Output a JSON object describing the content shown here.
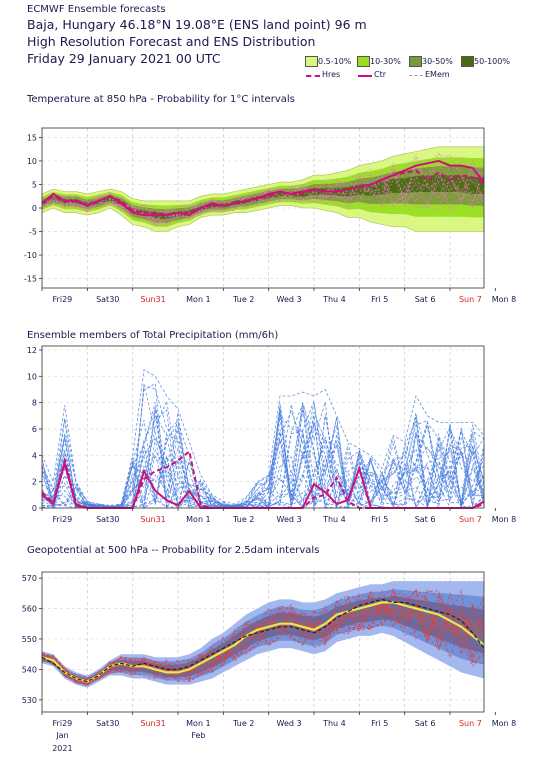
{
  "header": {
    "line1": "ECMWF Ensemble forecasts",
    "line2": "Baja, Hungary 46.18°N 19.08°E (ENS land point) 96 m",
    "line3": "High Resolution Forecast and ENS Distribution",
    "line4": "Friday 29 January 2021 00 UTC"
  },
  "legend": {
    "bins": [
      {
        "label": "0.5-10%",
        "color": "#d9f77e"
      },
      {
        "label": "10-30%",
        "color": "#99dd22"
      },
      {
        "label": "30-50%",
        "color": "#7a9a3a"
      },
      {
        "label": "50-100%",
        "color": "#4a6b10"
      }
    ],
    "lines": [
      {
        "label": "Hres",
        "color": "#cc1177",
        "style": "dashed"
      },
      {
        "label": "Ctr",
        "color": "#cc1177",
        "style": "solid"
      },
      {
        "label": "EMem",
        "color": "#ee77cc",
        "style": "dashed"
      }
    ]
  },
  "x_axis": {
    "days": [
      "Fri29",
      "Sat30",
      "Sun31",
      "Mon 1",
      "Tue 2",
      "Wed 3",
      "Thu 4",
      "Fri 5",
      "Sat 6",
      "Sun 7",
      "Mon 8"
    ],
    "sunday_color": "#dd2222",
    "month_labels": [
      "Jan",
      "Feb"
    ],
    "year_label": "2021"
  },
  "chart_data": [
    {
      "type": "area",
      "title": "Temperature at 850 hPa - Probability for 1°C intervals",
      "ylim": [
        -17,
        17
      ],
      "yticks": [
        -15,
        -10,
        -5,
        0,
        5,
        10,
        15
      ],
      "x": [
        0,
        0.25,
        0.5,
        0.75,
        1,
        1.25,
        1.5,
        1.75,
        2,
        2.25,
        2.5,
        2.75,
        3,
        3.25,
        3.5,
        3.75,
        4,
        4.25,
        4.5,
        4.75,
        5,
        5.25,
        5.5,
        5.75,
        6,
        6.25,
        6.5,
        6.75,
        7,
        7.25,
        7.5,
        7.75,
        8,
        8.25,
        8.5,
        8.75,
        9,
        9.25,
        9.5,
        9.75
      ],
      "series": [
        {
          "name": "Ctr",
          "values": [
            1,
            3,
            1.5,
            1.5,
            0.5,
            1.5,
            2.5,
            1,
            -1,
            -1.5,
            -1.5,
            -1.5,
            -1,
            -1.5,
            0,
            1,
            0.5,
            1,
            1.5,
            2,
            3,
            3.5,
            3,
            3.5,
            4,
            3.5,
            3.5,
            4,
            4.5,
            5,
            6,
            7,
            8,
            9,
            9.5,
            10,
            9,
            9,
            8.5,
            5.5
          ]
        },
        {
          "name": "Hres",
          "values": [
            1,
            2.5,
            1.5,
            1.5,
            0.5,
            1.5,
            2.5,
            1.5,
            -0.5,
            -1,
            -1,
            -1.5,
            -1,
            -1,
            0,
            0.5,
            0.5,
            1,
            1.5,
            2,
            2.5,
            3.5,
            3,
            3,
            4,
            3.5,
            3.5,
            4,
            4.5,
            5,
            6,
            7,
            7.5,
            8,
            6,
            7.5,
            6,
            7,
            6.5,
            5.5
          ]
        }
      ],
      "ens_low": [
        -1,
        0,
        -1,
        -1,
        -1.5,
        -1,
        0,
        -1.5,
        -3.5,
        -4,
        -5,
        -5,
        -4,
        -3.5,
        -2,
        -1.5,
        -1.5,
        -1,
        -1,
        -0.5,
        0,
        0.5,
        0.5,
        0,
        0,
        -0.5,
        -1,
        -2,
        -2,
        -3,
        -3.5,
        -4,
        -4,
        -5,
        -5,
        -5,
        -5,
        -5,
        -5,
        -5
      ],
      "ens_high": [
        3,
        4,
        3.5,
        3.5,
        3,
        3.5,
        4,
        3.5,
        2,
        1.5,
        1.5,
        1.5,
        1.5,
        1.5,
        2.5,
        3,
        3,
        3.5,
        4,
        4.5,
        5,
        5.5,
        5.5,
        6,
        7,
        7,
        7.5,
        8,
        9,
        9.5,
        10,
        11,
        11.5,
        12,
        12.5,
        13,
        13,
        13,
        13,
        13
      ],
      "ens_mean": [
        1,
        2,
        1.5,
        1.5,
        0.7,
        1.3,
        2,
        1,
        -0.5,
        -1,
        -1.5,
        -1.7,
        -1.3,
        -1,
        -0.2,
        0.5,
        0.5,
        1,
        1.5,
        2,
        2.5,
        3,
        3,
        3,
        3.5,
        3.5,
        3.5,
        3.5,
        4,
        4,
        4.5,
        5,
        5,
        5.5,
        5.5,
        5.5,
        5.5,
        5.5,
        5,
        5
      ]
    },
    {
      "type": "line",
      "title": "Ensemble members of Total Precipitation (mm/6h)",
      "ylim": [
        0,
        12.3
      ],
      "yticks": [
        0,
        2,
        4,
        6,
        8,
        10,
        12
      ],
      "x": [
        0,
        0.25,
        0.5,
        0.75,
        1,
        1.25,
        1.5,
        1.75,
        2,
        2.25,
        2.5,
        2.75,
        3,
        3.25,
        3.5,
        3.75,
        4,
        4.25,
        4.5,
        4.75,
        5,
        5.25,
        5.5,
        5.75,
        6,
        6.25,
        6.5,
        6.75,
        7,
        7.25,
        7.5,
        7.75,
        8,
        8.25,
        8.5,
        8.75,
        9,
        9.25,
        9.5,
        9.75
      ],
      "series": [
        {
          "name": "Ctr",
          "values": [
            1,
            0.3,
            3.4,
            0.2,
            0,
            0,
            0,
            0,
            0,
            2.8,
            1.3,
            0.6,
            0.2,
            1.3,
            0,
            0,
            0,
            0,
            0,
            0,
            0,
            0,
            0,
            0,
            1.8,
            1.2,
            0.3,
            0.6,
            3,
            0,
            0,
            0,
            0,
            0,
            0,
            0,
            0,
            0,
            0,
            0.5
          ]
        },
        {
          "name": "Hres",
          "values": [
            1.2,
            0.4,
            3.6,
            0.3,
            0,
            0,
            0,
            0,
            0,
            2.2,
            2.8,
            3.1,
            3.6,
            4.3,
            0.2,
            0,
            0,
            0,
            0,
            0,
            0,
            0,
            0,
            0,
            0.8,
            1,
            2.3,
            0.5,
            0,
            0,
            0,
            0,
            0,
            0,
            0,
            0,
            0,
            0,
            0,
            0.3
          ]
        }
      ],
      "member_max": [
        4,
        2,
        7.8,
        2,
        0.5,
        0.3,
        0.2,
        0.3,
        4,
        10.5,
        10,
        8.5,
        7.5,
        5,
        2.5,
        1,
        0.5,
        0.3,
        0.8,
        2,
        2.5,
        8.5,
        8.5,
        8.8,
        8.5,
        9,
        7,
        5,
        4.5,
        4,
        3,
        5.5,
        5,
        8.5,
        7,
        6.5,
        6.5,
        6.5,
        6.5,
        5.5
      ]
    },
    {
      "type": "area",
      "title": "Geopotential at 500 hPa -- Probability for 2.5dam intervals",
      "ylim": [
        526,
        572
      ],
      "yticks": [
        530,
        540,
        550,
        560,
        570
      ],
      "x": [
        0,
        0.25,
        0.5,
        0.75,
        1,
        1.25,
        1.5,
        1.75,
        2,
        2.25,
        2.5,
        2.75,
        3,
        3.25,
        3.5,
        3.75,
        4,
        4.25,
        4.5,
        4.75,
        5,
        5.25,
        5.5,
        5.75,
        6,
        6.25,
        6.5,
        6.75,
        7,
        7.25,
        7.5,
        7.75,
        8,
        8.25,
        8.5,
        8.75,
        9,
        9.25,
        9.5,
        9.75
      ],
      "series": [
        {
          "name": "Ctr",
          "values": [
            544,
            543,
            539,
            537,
            536,
            538,
            541,
            542,
            541,
            541,
            540,
            539,
            539,
            540,
            542,
            544,
            546,
            548,
            551,
            553,
            554,
            555,
            555,
            554,
            553,
            555,
            558,
            559,
            560,
            561,
            562,
            562,
            561,
            560,
            559,
            558,
            556,
            554,
            551,
            548
          ]
        },
        {
          "name": "Hres",
          "values": [
            544,
            542,
            539,
            537,
            536,
            538,
            541,
            542,
            541,
            542,
            541,
            540,
            540,
            541,
            543,
            545,
            547,
            549,
            551,
            552,
            553,
            554,
            554,
            553,
            552,
            554,
            557,
            559,
            561,
            562,
            563,
            562,
            562,
            561,
            560,
            559,
            558,
            556,
            552,
            547
          ]
        }
      ],
      "ens_low": [
        542,
        541,
        537,
        535,
        534,
        536,
        538,
        538,
        537,
        537,
        536,
        535,
        535,
        535,
        536,
        537,
        539,
        541,
        543,
        545,
        546,
        547,
        547,
        546,
        545,
        546,
        549,
        550,
        551,
        551,
        552,
        551,
        549,
        547,
        545,
        543,
        541,
        539,
        538,
        537
      ],
      "ens_high": [
        546,
        545,
        541,
        539,
        538,
        540,
        543,
        545,
        545,
        545,
        544,
        544,
        544,
        545,
        547,
        550,
        552,
        555,
        558,
        560,
        562,
        563,
        563,
        562,
        562,
        563,
        565,
        566,
        567,
        568,
        568,
        569,
        569,
        569,
        569,
        569,
        569,
        569,
        569,
        569
      ],
      "ens_mean": [
        544,
        543,
        539,
        537,
        536,
        538,
        540.5,
        541.5,
        541,
        541,
        540,
        539.5,
        539.5,
        540,
        541.5,
        543.5,
        545.5,
        548,
        550.5,
        552.5,
        554,
        555,
        555,
        554,
        553.5,
        554.5,
        557,
        558,
        559,
        559.5,
        560,
        560,
        559,
        558,
        557,
        556,
        555,
        554,
        553,
        552
      ]
    }
  ]
}
